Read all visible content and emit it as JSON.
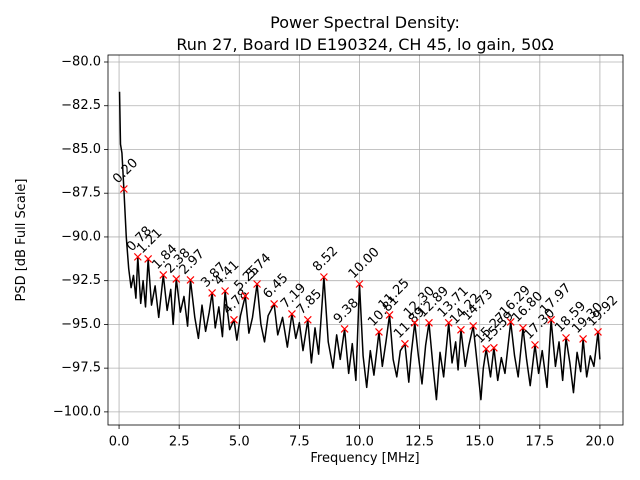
{
  "chart_data": {
    "type": "line",
    "title": "Power Spectral Density:",
    "subtitle": "Run 27, Board ID E190324, CH 45, lo gain, 50Ω",
    "x_label": "Frequency [MHz]",
    "y_label": "PSD [dB Full Scale]",
    "xlim": [
      -0.46,
      20.96
    ],
    "ylim": [
      -100.75,
      -79.6
    ],
    "xticks": [
      {
        "value": 0,
        "label": "0.0"
      },
      {
        "value": 2.5,
        "label": "2.5"
      },
      {
        "value": 5,
        "label": "5.0"
      },
      {
        "value": 7.5,
        "label": "7.5"
      },
      {
        "value": 10,
        "label": "10.0"
      },
      {
        "value": 12.5,
        "label": "12.5"
      },
      {
        "value": 15,
        "label": "15.0"
      },
      {
        "value": 17.5,
        "label": "17.5"
      },
      {
        "value": 20,
        "label": "20.0"
      }
    ],
    "yticks": [
      {
        "value": -80,
        "label": "−80.0"
      },
      {
        "value": -82.5,
        "label": "−82.5"
      },
      {
        "value": -85,
        "label": "−85.0"
      },
      {
        "value": -87.5,
        "label": "−87.5"
      },
      {
        "value": -90,
        "label": "−90.0"
      },
      {
        "value": -92.5,
        "label": "−92.5"
      },
      {
        "value": -95,
        "label": "−95.0"
      },
      {
        "value": -97.5,
        "label": "−97.5"
      },
      {
        "value": -100,
        "label": "−100.0"
      }
    ],
    "grid": true,
    "color": "#000000",
    "x": [
      0.02,
      0.06,
      0.12,
      0.2,
      0.3,
      0.4,
      0.5,
      0.6,
      0.7,
      0.78,
      0.9,
      1.0,
      1.1,
      1.21,
      1.35,
      1.5,
      1.65,
      1.84,
      2.0,
      2.15,
      2.25,
      2.38,
      2.55,
      2.7,
      2.85,
      2.97,
      3.15,
      3.3,
      3.45,
      3.6,
      3.75,
      3.87,
      4.0,
      4.15,
      4.3,
      4.41,
      4.6,
      4.78,
      4.9,
      5.05,
      5.25,
      5.4,
      5.55,
      5.74,
      5.9,
      6.05,
      6.2,
      6.45,
      6.6,
      6.8,
      7.0,
      7.19,
      7.35,
      7.5,
      7.65,
      7.85,
      8.0,
      8.15,
      8.3,
      8.52,
      8.7,
      8.9,
      9.05,
      9.2,
      9.38,
      9.55,
      9.7,
      9.85,
      10.0,
      10.15,
      10.3,
      10.45,
      10.6,
      10.81,
      10.95,
      11.1,
      11.25,
      11.4,
      11.55,
      11.7,
      11.89,
      12.05,
      12.15,
      12.3,
      12.45,
      12.6,
      12.75,
      12.89,
      13.05,
      13.2,
      13.35,
      13.5,
      13.71,
      13.85,
      14.0,
      14.1,
      14.22,
      14.4,
      14.55,
      14.73,
      14.9,
      15.05,
      15.15,
      15.27,
      15.45,
      15.59,
      15.75,
      15.9,
      16.05,
      16.29,
      16.45,
      16.6,
      16.8,
      16.95,
      17.1,
      17.3,
      17.45,
      17.6,
      17.8,
      17.97,
      18.15,
      18.3,
      18.45,
      18.59,
      18.75,
      18.9,
      19.05,
      19.2,
      19.3,
      19.45,
      19.6,
      19.75,
      19.92,
      20.0
    ],
    "values": [
      -81.7,
      -84.7,
      -85.2,
      -87.26,
      -90.0,
      -91.8,
      -92.9,
      -92.2,
      -93.5,
      -91.14,
      -93.8,
      -92.5,
      -94.0,
      -91.26,
      -93.9,
      -92.8,
      -94.6,
      -92.17,
      -94.2,
      -93.0,
      -95.0,
      -92.4,
      -94.3,
      -93.4,
      -95.1,
      -92.46,
      -94.6,
      -95.8,
      -93.9,
      -95.4,
      -94.3,
      -93.2,
      -95.2,
      -94.0,
      -95.7,
      -93.09,
      -95.3,
      -94.74,
      -95.9,
      -94.5,
      -93.37,
      -95.5,
      -94.6,
      -92.69,
      -95.0,
      -96.0,
      -94.5,
      -93.83,
      -95.6,
      -94.6,
      -96.3,
      -94.4,
      -95.8,
      -94.9,
      -96.5,
      -94.74,
      -97.2,
      -95.2,
      -96.7,
      -92.29,
      -96.0,
      -97.5,
      -95.6,
      -97.0,
      -95.26,
      -97.8,
      -96.1,
      -98.2,
      -92.69,
      -96.8,
      -98.6,
      -96.5,
      -97.9,
      -95.43,
      -97.4,
      -96.0,
      -94.46,
      -97.0,
      -98.0,
      -96.5,
      -96.11,
      -98.3,
      -96.7,
      -94.91,
      -96.8,
      -98.4,
      -96.2,
      -94.91,
      -97.3,
      -99.3,
      -96.6,
      -98.0,
      -94.91,
      -97.2,
      -96.0,
      -97.6,
      -95.31,
      -97.4,
      -96.2,
      -95.09,
      -97.3,
      -99.3,
      -97.5,
      -96.4,
      -98.0,
      -96.34,
      -98.2,
      -96.9,
      -97.8,
      -94.86,
      -96.8,
      -98.0,
      -95.2,
      -97.0,
      -98.5,
      -96.17,
      -97.8,
      -96.5,
      -98.6,
      -94.74,
      -97.4,
      -96.0,
      -98.2,
      -95.77,
      -97.2,
      -98.9,
      -96.6,
      -97.7,
      -95.83,
      -98.0,
      -96.8,
      -97.4,
      -95.43,
      -97.0
    ],
    "peaks": {
      "color": "#ff0000",
      "x": [
        0.2,
        0.78,
        1.21,
        1.84,
        2.38,
        2.97,
        3.87,
        4.41,
        4.78,
        5.25,
        5.74,
        6.45,
        7.19,
        7.85,
        8.52,
        9.38,
        10.0,
        10.81,
        11.25,
        11.89,
        12.3,
        12.89,
        13.71,
        14.22,
        14.73,
        15.27,
        15.59,
        16.29,
        16.8,
        17.3,
        17.97,
        18.59,
        19.3,
        19.92
      ],
      "x_labels": [
        "0.20",
        "0.78",
        "1.21",
        "1.84",
        "2.38",
        "2.97",
        "3.87",
        "4.41",
        "4.78",
        "5.25",
        "5.74",
        "6.45",
        "7.19",
        "7.85",
        "8.52",
        "9.38",
        "10.00",
        "10.81",
        "11.25",
        "11.89",
        "12.30",
        "12.89",
        "13.71",
        "14.22",
        "14.73",
        "15.27",
        "15.59",
        "16.29",
        "16.80",
        "17.30",
        "17.97",
        "18.59",
        "19.30",
        "19.92"
      ],
      "values": [
        -87.26,
        -91.14,
        -91.26,
        -92.17,
        -92.4,
        -92.46,
        -93.2,
        -93.09,
        -94.74,
        -93.37,
        -92.69,
        -93.83,
        -94.4,
        -94.74,
        -92.29,
        -95.26,
        -92.69,
        -95.43,
        -94.46,
        -96.11,
        -94.91,
        -94.91,
        -94.91,
        -95.31,
        -95.09,
        -96.4,
        -96.34,
        -94.86,
        -95.2,
        -96.17,
        -94.74,
        -95.77,
        -95.83,
        -95.43
      ]
    }
  }
}
